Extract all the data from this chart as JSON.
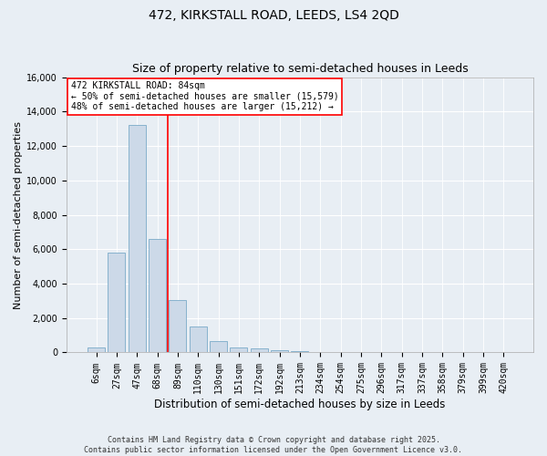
{
  "title1": "472, KIRKSTALL ROAD, LEEDS, LS4 2QD",
  "title2": "Size of property relative to semi-detached houses in Leeds",
  "xlabel": "Distribution of semi-detached houses by size in Leeds",
  "ylabel": "Number of semi-detached properties",
  "bar_labels": [
    "6sqm",
    "27sqm",
    "47sqm",
    "68sqm",
    "89sqm",
    "110sqm",
    "130sqm",
    "151sqm",
    "172sqm",
    "192sqm",
    "213sqm",
    "234sqm",
    "254sqm",
    "275sqm",
    "296sqm",
    "317sqm",
    "337sqm",
    "358sqm",
    "379sqm",
    "399sqm",
    "420sqm"
  ],
  "bar_values": [
    300,
    5800,
    13200,
    6600,
    3050,
    1500,
    650,
    300,
    250,
    130,
    80,
    30,
    10,
    5,
    3,
    2,
    1,
    1,
    0,
    0,
    0
  ],
  "bar_color": "#ccd9e8",
  "bar_edge_color": "#7aaac8",
  "vline_color": "red",
  "vline_pos": 3.5,
  "annotation_title": "472 KIRKSTALL ROAD: 84sqm",
  "annotation_line1": "← 50% of semi-detached houses are smaller (15,579)",
  "annotation_line2": "48% of semi-detached houses are larger (15,212) →",
  "ylim": [
    0,
    16000
  ],
  "yticks": [
    0,
    2000,
    4000,
    6000,
    8000,
    10000,
    12000,
    14000,
    16000
  ],
  "footer1": "Contains HM Land Registry data © Crown copyright and database right 2025.",
  "footer2": "Contains public sector information licensed under the Open Government Licence v3.0.",
  "bg_color": "#e8eef4",
  "title_fontsize": 10,
  "subtitle_fontsize": 9,
  "ylabel_fontsize": 8,
  "xlabel_fontsize": 8.5,
  "tick_fontsize": 7,
  "ann_fontsize": 7,
  "footer_fontsize": 6
}
